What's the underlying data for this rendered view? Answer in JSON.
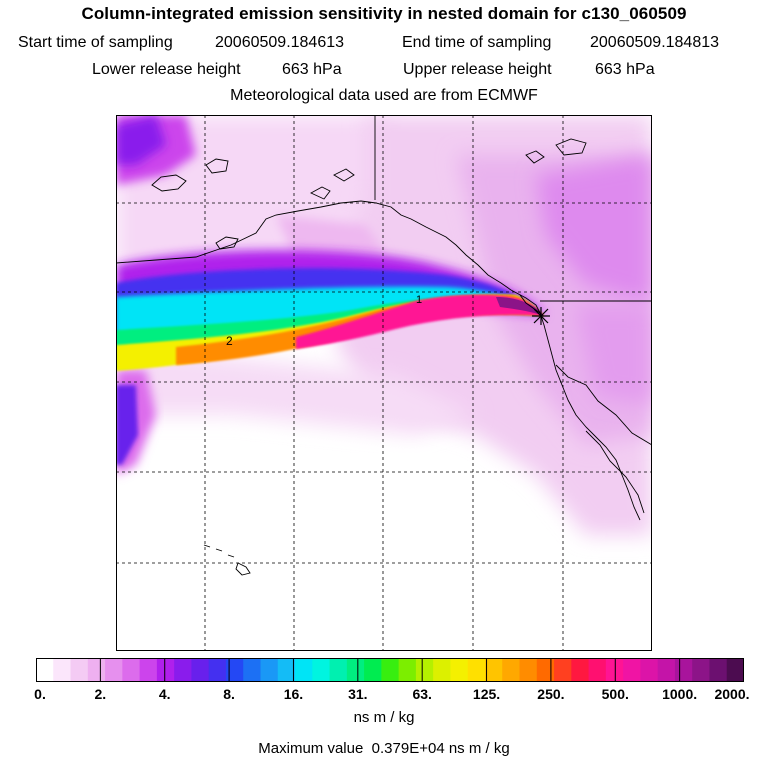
{
  "header": {
    "title": "Column-integrated emission sensitivity in nested domain for c130_060509",
    "start_label": "Start time of sampling",
    "start_value": "20060509.184613",
    "end_label": "End time of sampling",
    "end_value": "20060509.184813",
    "lower_label": "Lower release height",
    "lower_value": "663 hPa",
    "upper_label": "Upper release height",
    "upper_value": "663 hPa",
    "meteo": "Meteorological data used are from ECMWF"
  },
  "map": {
    "plume_labels": [
      "1",
      "2"
    ],
    "release_marker": "release-point-star-icon"
  },
  "colorbar": {
    "tick_labels": [
      "0.",
      "2.",
      "4.",
      "8.",
      "16.",
      "31.",
      "63.",
      "125.",
      "250.",
      "500.",
      "1000.",
      "2000."
    ],
    "colors": [
      "#ffffff",
      "#fbe6fb",
      "#f4cbf4",
      "#eeb0f0",
      "#e690ee",
      "#dc6cec",
      "#cc44ec",
      "#b020ec",
      "#8a1cec",
      "#6820ec",
      "#4430f0",
      "#2448f4",
      "#1c70f4",
      "#1a98f6",
      "#14bcf6",
      "#00e4f6",
      "#00f4e0",
      "#00f0b0",
      "#00ee80",
      "#00ec50",
      "#38ee10",
      "#7cee00",
      "#b4f000",
      "#dcf000",
      "#f4f000",
      "#ffe000",
      "#ffc400",
      "#ffa800",
      "#ff8c00",
      "#ff6a00",
      "#ff4020",
      "#ff1840",
      "#ff1070",
      "#ff1494",
      "#f014a4",
      "#dc14a8",
      "#c414a8",
      "#a8149c",
      "#8c1488",
      "#6c1070",
      "#4c0c50"
    ],
    "units": "ns m / kg"
  },
  "footer": {
    "max_label": "Maximum value",
    "max_value": "0.379E+04 ns m / kg"
  }
}
